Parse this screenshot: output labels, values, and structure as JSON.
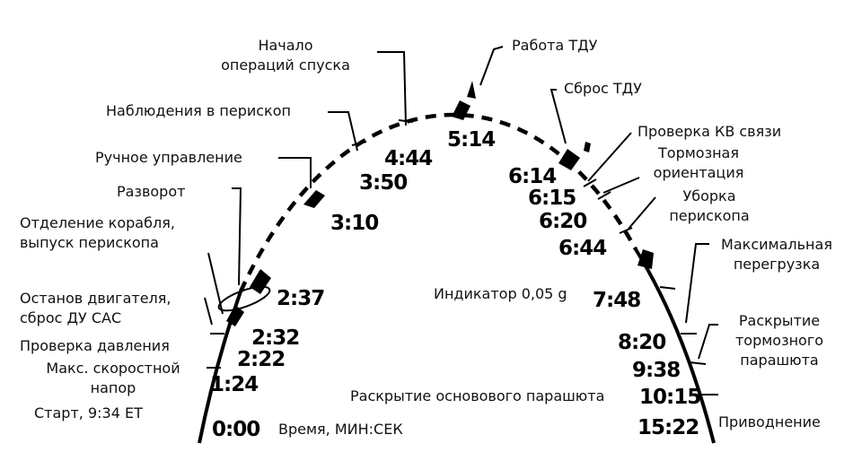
{
  "labels": [
    {
      "lines": [
        "Начало",
        "операций спуска"
      ]
    },
    {
      "lines": [
        "Работа ТДУ"
      ]
    },
    {
      "lines": [
        "Сброс ТДУ"
      ]
    },
    {
      "lines": [
        "Наблюдения в перископ"
      ]
    },
    {
      "lines": [
        "Ручное управление"
      ]
    },
    {
      "lines": [
        "Проверка КВ связи"
      ]
    },
    {
      "lines": [
        "Тормозная",
        "ориентация"
      ]
    },
    {
      "lines": [
        "Разворот"
      ]
    },
    {
      "lines": [
        "Отделение корабля,",
        "выпуск перископа"
      ]
    },
    {
      "lines": [
        "Уборка",
        "перископа"
      ]
    },
    {
      "lines": [
        "Максимальная",
        "перегрузка"
      ]
    },
    {
      "lines": [
        "Останов двигателя,",
        "сброс ДУ САС"
      ]
    },
    {
      "lines": [
        "Индикатор 0,05 g"
      ]
    },
    {
      "lines": [
        "Проверка давления"
      ]
    },
    {
      "lines": [
        "Раскрытие",
        "тормозного",
        "парашюта"
      ]
    },
    {
      "lines": [
        "Макс. скоростной",
        "напор"
      ]
    },
    {
      "lines": [
        "Старт, 9:34 ET"
      ]
    },
    {
      "lines": [
        "Раскрытие основового парашюта"
      ]
    },
    {
      "lines": [
        "Приводнение"
      ]
    }
  ],
  "times": [
    "0:00",
    "1:24",
    "2:22",
    "2:32",
    "2:37",
    "3:10",
    "3:50",
    "4:44",
    "5:14",
    "6:14",
    "6:15",
    "6:20",
    "6:44",
    "7:48",
    "8:20",
    "9:38",
    "10:15",
    "15:22"
  ],
  "axis_label": "Время, МИН:СЕК"
}
